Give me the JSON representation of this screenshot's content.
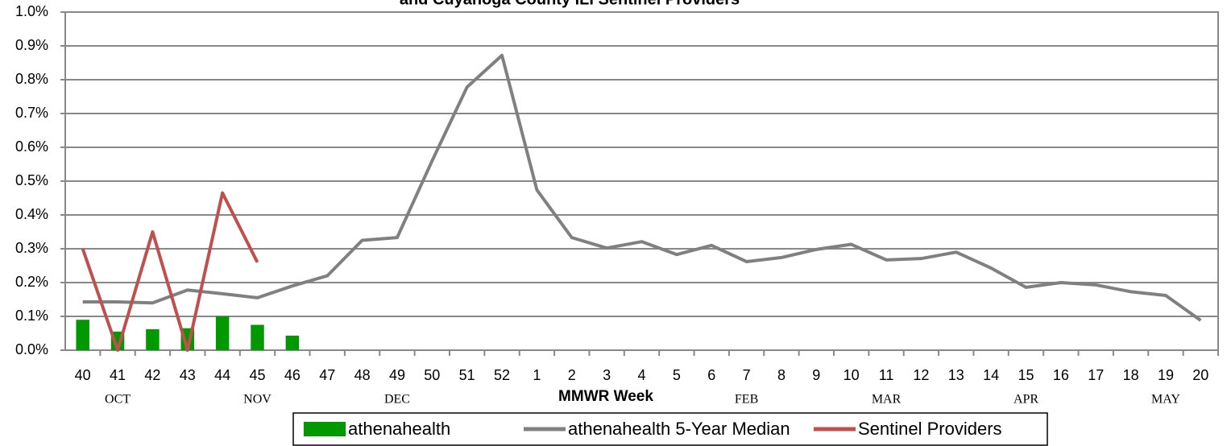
{
  "chart_data": {
    "type": "bar",
    "title": "and Cuyahoga County ILI Sentinel Providers",
    "x_label": "MMWR Week",
    "categories": [
      "40",
      "41",
      "42",
      "43",
      "44",
      "45",
      "46",
      "47",
      "48",
      "49",
      "50",
      "51",
      "52",
      "1",
      "2",
      "3",
      "4",
      "5",
      "6",
      "7",
      "8",
      "9",
      "10",
      "11",
      "12",
      "13",
      "14",
      "15",
      "16",
      "17",
      "18",
      "19",
      "20"
    ],
    "month_labels": [
      {
        "text": "OCT",
        "category": "41"
      },
      {
        "text": "NOV",
        "category": "45"
      },
      {
        "text": "DEC",
        "category": "49"
      },
      {
        "text": "FEB",
        "category": "7"
      },
      {
        "text": "MAR",
        "category": "11"
      },
      {
        "text": "APR",
        "category": "15"
      },
      {
        "text": "MAY",
        "category": "19"
      }
    ],
    "series": [
      {
        "name": "athenahealth",
        "type": "bar",
        "color": "#009900",
        "values": [
          0.09,
          0.055,
          0.062,
          0.065,
          0.1,
          0.075,
          0.043,
          null,
          null,
          null,
          null,
          null,
          null,
          null,
          null,
          null,
          null,
          null,
          null,
          null,
          null,
          null,
          null,
          null,
          null,
          null,
          null,
          null,
          null,
          null,
          null,
          null,
          null
        ]
      },
      {
        "name": "athenahealth 5-Year Median",
        "type": "line",
        "color": "#808080",
        "values": [
          0.143,
          0.143,
          0.14,
          0.178,
          0.167,
          0.155,
          0.19,
          0.22,
          0.325,
          0.333,
          0.56,
          0.778,
          0.872,
          0.474,
          0.333,
          0.302,
          0.321,
          0.283,
          0.31,
          0.262,
          0.274,
          0.298,
          0.313,
          0.267,
          0.271,
          0.29,
          0.243,
          0.186,
          0.2,
          0.193,
          0.173,
          0.162,
          0.088
        ]
      },
      {
        "name": "Sentinel Providers",
        "type": "line",
        "color": "#c0504d",
        "values": [
          0.3,
          0,
          0.35,
          0,
          0.465,
          0.26,
          null,
          null,
          null,
          null,
          null,
          null,
          null,
          null,
          null,
          null,
          null,
          null,
          null,
          null,
          null,
          null,
          null,
          null,
          null,
          null,
          null,
          null,
          null,
          null,
          null,
          null,
          null
        ]
      }
    ],
    "ylim": [
      0,
      1
    ],
    "yticks": [
      {
        "value": 0,
        "label": "0.0%"
      },
      {
        "value": 0.1,
        "label": "0.1%"
      },
      {
        "value": 0.2,
        "label": "0.2%"
      },
      {
        "value": 0.3,
        "label": "0.3%"
      },
      {
        "value": 0.4,
        "label": "0.4%"
      },
      {
        "value": 0.5,
        "label": "0.5%"
      },
      {
        "value": 0.6,
        "label": "0.6%"
      },
      {
        "value": 0.7,
        "label": "0.7%"
      },
      {
        "value": 0.8,
        "label": "0.8%"
      },
      {
        "value": 0.9,
        "label": "0.9%"
      },
      {
        "value": 1,
        "label": "1.0%"
      }
    ],
    "grid": true,
    "legend": "bottom"
  }
}
